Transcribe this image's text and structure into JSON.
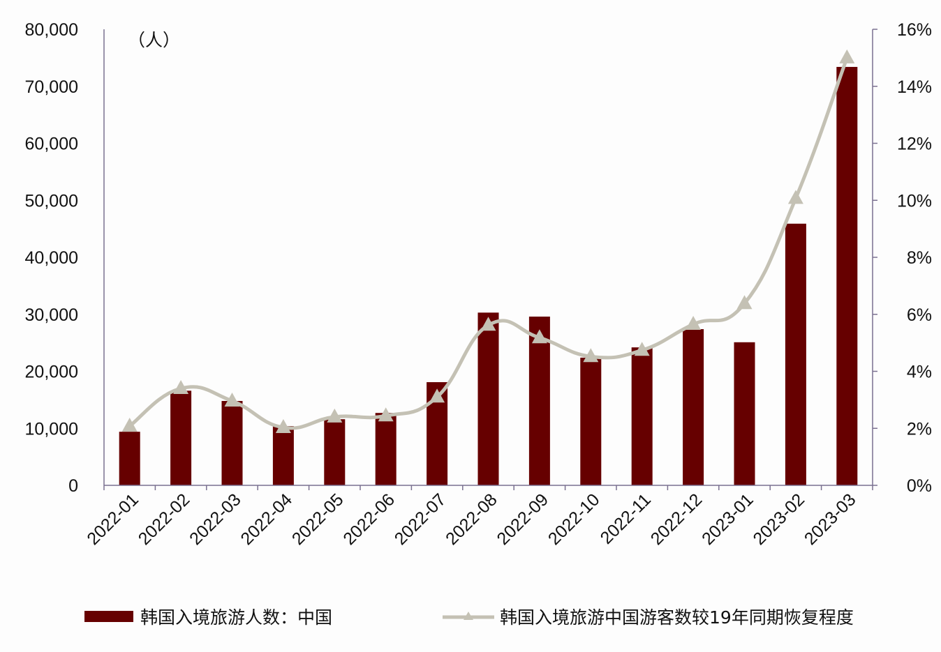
{
  "chart_data": {
    "type": "bar+line",
    "title": "",
    "unit_label": "（人）",
    "categories": [
      "2022-01",
      "2022-02",
      "2022-03",
      "2022-04",
      "2022-05",
      "2022-06",
      "2022-07",
      "2022-08",
      "2022-09",
      "2022-10",
      "2022-11",
      "2022-12",
      "2023-01",
      "2023-02",
      "2023-03"
    ],
    "series": [
      {
        "name": "韩国入境旅游人数：中国",
        "type": "bar",
        "axis": "left",
        "color": "#660000",
        "values": [
          9400,
          16600,
          14800,
          10400,
          11600,
          12700,
          18100,
          30300,
          29600,
          22400,
          24200,
          27400,
          25100,
          45900,
          73400
        ]
      },
      {
        "name": "韩国入境旅游中国游客数较19年同期恢复程度",
        "type": "line",
        "axis": "right",
        "color": "#c4c1b4",
        "marker": "triangle",
        "smooth": true,
        "values": [
          2.08,
          3.4,
          2.96,
          2.03,
          2.4,
          2.44,
          3.1,
          5.62,
          5.18,
          4.52,
          4.74,
          5.65,
          6.38,
          10.07,
          15.0
        ]
      }
    ],
    "left_axis": {
      "ylim": [
        0,
        80000
      ],
      "ticks": [
        0,
        10000,
        20000,
        30000,
        40000,
        50000,
        60000,
        70000,
        80000
      ],
      "tick_labels": [
        "0",
        "10,000",
        "20,000",
        "30,000",
        "40,000",
        "50,000",
        "60,000",
        "70,000",
        "80,000"
      ]
    },
    "right_axis": {
      "ylim": [
        0,
        16
      ],
      "ticks": [
        0,
        2,
        4,
        6,
        8,
        10,
        12,
        14,
        16
      ],
      "tick_labels": [
        "0%",
        "2%",
        "4%",
        "6%",
        "8%",
        "10%",
        "12%",
        "14%",
        "16%"
      ]
    },
    "xlabel": "",
    "ylabel": "",
    "grid": false,
    "legend_position": "bottom"
  },
  "legend": {
    "bar_label": "韩国入境旅游人数：中国",
    "line_label": "韩国入境旅游中国游客数较19年同期恢复程度"
  }
}
